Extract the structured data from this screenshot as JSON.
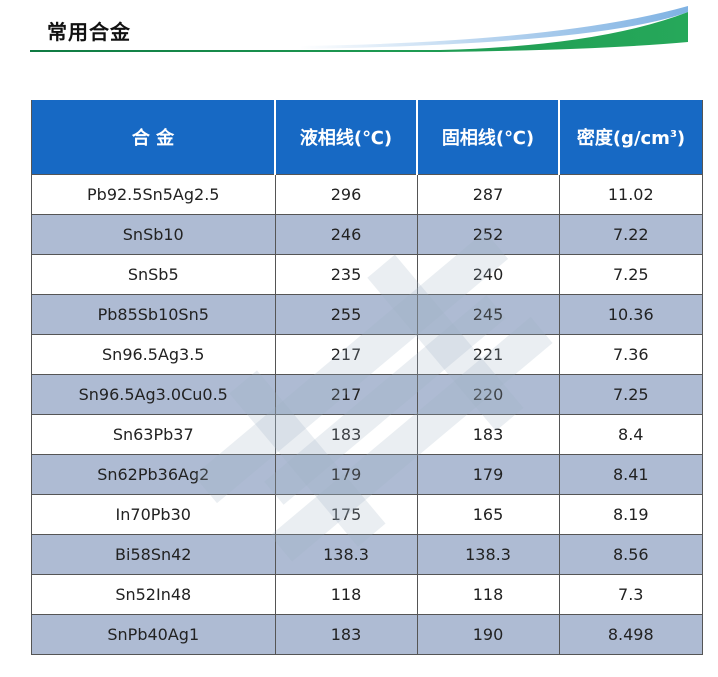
{
  "page_title": "常用合金",
  "colors": {
    "header_blue": "#1769c4",
    "stripe": "#aebbd3",
    "accent_green": "#1a8f4d"
  },
  "table": {
    "headers": [
      "合 金",
      "液相线(℃)",
      "固相线(℃)",
      "密度(g/cm",
      "3",
      ")"
    ],
    "rows": [
      [
        "Pb92.5Sn5Ag2.5",
        "296",
        "287",
        "11.02"
      ],
      [
        "SnSb10",
        "246",
        "252",
        "7.22"
      ],
      [
        "SnSb5",
        "235",
        "240",
        "7.25"
      ],
      [
        "Pb85Sb10Sn5",
        "255",
        "245",
        "10.36"
      ],
      [
        "Sn96.5Ag3.5",
        "217",
        "221",
        "7.36"
      ],
      [
        "Sn96.5Ag3.0Cu0.5",
        "217",
        "220",
        "7.25"
      ],
      [
        "Sn63Pb37",
        "183",
        "183",
        "8.4"
      ],
      [
        "Sn62Pb36Ag2",
        "179",
        "179",
        "8.41"
      ],
      [
        "In70Pb30",
        "175",
        "165",
        "8.19"
      ],
      [
        "Bi58Sn42",
        "138.3",
        "138.3",
        "8.56"
      ],
      [
        "Sn52In48",
        "118",
        "118",
        "7.3"
      ],
      [
        "SnPb40Ag1",
        "183",
        "190",
        "8.498"
      ]
    ]
  }
}
